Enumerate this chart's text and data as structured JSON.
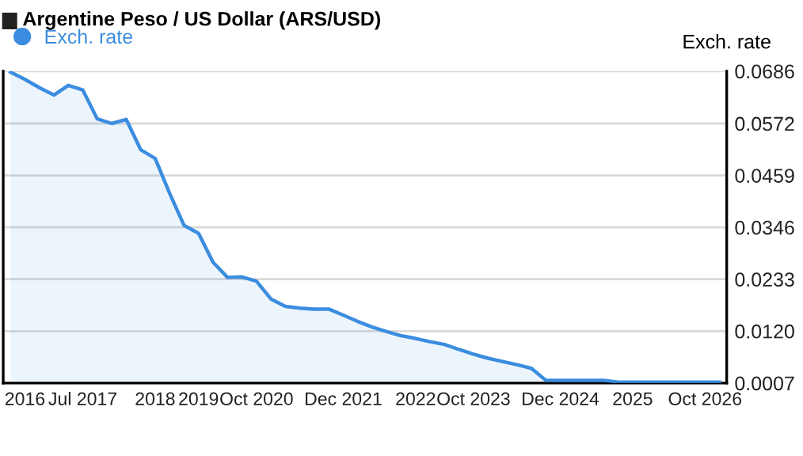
{
  "chart_data": {
    "type": "area",
    "title": "Argentine Peso / US Dollar (ARS/USD)",
    "ylabel": "Exch. rate",
    "categories": [
      null,
      "2016",
      null,
      null,
      null,
      "Jul 2017",
      null,
      null,
      null,
      null,
      "2018",
      null,
      null,
      "2019",
      null,
      null,
      null,
      "Oct 2020",
      null,
      null,
      null,
      null,
      null,
      "Dec 2021",
      null,
      null,
      null,
      null,
      "2022",
      null,
      null,
      null,
      "Oct 2023",
      null,
      null,
      null,
      null,
      null,
      "Dec 2024",
      null,
      null,
      null,
      null,
      "2025",
      null,
      null,
      null,
      null,
      "Oct 2026",
      null
    ],
    "series": [
      {
        "name": "Exch. rate",
        "color": "#3b8de0",
        "values": [
          0.0684,
          0.0668,
          0.065,
          0.0634,
          0.0655,
          0.0645,
          0.0582,
          0.0572,
          0.0581,
          0.0515,
          0.0496,
          0.042,
          0.035,
          0.0333,
          0.027,
          0.0237,
          0.0238,
          0.0229,
          0.019,
          0.0174,
          0.017,
          0.0168,
          0.0168,
          0.0155,
          0.0141,
          0.0129,
          0.0119,
          0.011,
          0.0104,
          0.0097,
          0.0091,
          0.008,
          0.007,
          0.0061,
          0.0054,
          0.0047,
          0.0039,
          0.0013,
          0.0013,
          0.0013,
          0.0013,
          0.0013,
          0.0009,
          0.0009,
          0.0009,
          0.0009,
          0.0009,
          0.0009,
          0.0009,
          0.0009
        ]
      }
    ],
    "ylim": [
      0.0007,
      0.0686
    ],
    "yticks": [
      {
        "value": 0.0007,
        "label": "0.0007"
      },
      {
        "value": 0.012,
        "label": "0.0120"
      },
      {
        "value": 0.0233,
        "label": "0.0233"
      },
      {
        "value": 0.0346,
        "label": "0.0346"
      },
      {
        "value": 0.0459,
        "label": "0.0459"
      },
      {
        "value": 0.0572,
        "label": "0.0572"
      },
      {
        "value": 0.0686,
        "label": "0.0686"
      }
    ],
    "grid": "y",
    "legend": "top left",
    "marker": "none"
  }
}
